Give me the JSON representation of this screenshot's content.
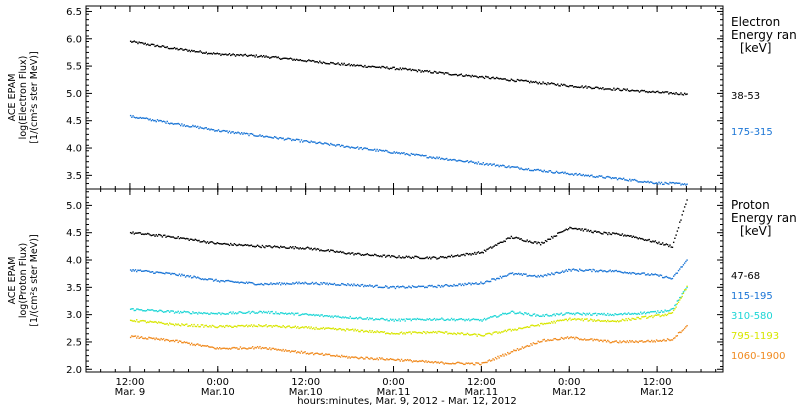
{
  "figure": {
    "xlabel": "hours:minutes, Mar.  9, 2012 - Mar. 12, 2012",
    "x_ticks": [
      {
        "time": "12:00",
        "date": "Mar. 9"
      },
      {
        "time": "0:00",
        "date": "Mar.10"
      },
      {
        "time": "12:00",
        "date": "Mar.10"
      },
      {
        "time": "0:00",
        "date": "Mar.11"
      },
      {
        "time": "12:00",
        "date": "Mar.11"
      },
      {
        "time": "0:00",
        "date": "Mar.12"
      },
      {
        "time": "12:00",
        "date": "Mar.12"
      }
    ]
  },
  "chart_data": [
    {
      "type": "scatter",
      "panel": "electron",
      "ylabel": [
        "ACE EPAM",
        "log(Electron Flux)",
        "[1/(cm²s ster MeV)]"
      ],
      "ylim": [
        3.25,
        6.6
      ],
      "yticks": [
        3.5,
        4.0,
        4.5,
        5.0,
        5.5,
        6.0,
        6.5
      ],
      "xlim_hours": [
        -6,
        81
      ],
      "legend": {
        "title1": "Electron",
        "title2": "Energy ran",
        "unit": "[keV]"
      },
      "series": [
        {
          "name": "38-53",
          "color": "#000000",
          "points": [
            [
              0,
              5.95
            ],
            [
              6,
              5.82
            ],
            [
              12,
              5.72
            ],
            [
              18,
              5.68
            ],
            [
              24,
              5.6
            ],
            [
              30,
              5.52
            ],
            [
              36,
              5.46
            ],
            [
              42,
              5.38
            ],
            [
              48,
              5.3
            ],
            [
              54,
              5.22
            ],
            [
              60,
              5.14
            ],
            [
              66,
              5.08
            ],
            [
              72,
              5.02
            ],
            [
              76,
              4.99
            ]
          ]
        },
        {
          "name": "175-315",
          "color": "#1a75d6",
          "points": [
            [
              0,
              4.58
            ],
            [
              6,
              4.45
            ],
            [
              12,
              4.32
            ],
            [
              18,
              4.22
            ],
            [
              24,
              4.12
            ],
            [
              30,
              4.02
            ],
            [
              36,
              3.92
            ],
            [
              42,
              3.82
            ],
            [
              48,
              3.72
            ],
            [
              54,
              3.62
            ],
            [
              60,
              3.53
            ],
            [
              66,
              3.45
            ],
            [
              72,
              3.36
            ],
            [
              76,
              3.34
            ]
          ]
        }
      ]
    },
    {
      "type": "scatter",
      "panel": "proton",
      "ylabel": [
        "ACE EPAM",
        "log(Proton Flux)",
        "[1/(cm²s ster MeV)]"
      ],
      "ylim": [
        1.95,
        5.3
      ],
      "yticks": [
        2.0,
        2.5,
        3.0,
        3.5,
        4.0,
        4.5,
        5.0
      ],
      "xlim_hours": [
        -6,
        81
      ],
      "legend": {
        "title1": "Proton",
        "title2": "Energy ran",
        "unit": "[keV]"
      },
      "series": [
        {
          "name": "47-68",
          "color": "#000000",
          "points": [
            [
              0,
              4.5
            ],
            [
              6,
              4.42
            ],
            [
              12,
              4.3
            ],
            [
              18,
              4.25
            ],
            [
              24,
              4.22
            ],
            [
              30,
              4.12
            ],
            [
              36,
              4.06
            ],
            [
              42,
              4.04
            ],
            [
              48,
              4.14
            ],
            [
              52,
              4.42
            ],
            [
              56,
              4.3
            ],
            [
              60,
              4.6
            ],
            [
              64,
              4.5
            ],
            [
              68,
              4.45
            ],
            [
              72,
              4.32
            ],
            [
              74,
              4.25
            ],
            [
              76,
              5.1
            ]
          ]
        },
        {
          "name": "115-195",
          "color": "#1a75d6",
          "points": [
            [
              0,
              3.82
            ],
            [
              6,
              3.74
            ],
            [
              12,
              3.62
            ],
            [
              18,
              3.56
            ],
            [
              24,
              3.58
            ],
            [
              30,
              3.55
            ],
            [
              36,
              3.5
            ],
            [
              42,
              3.52
            ],
            [
              48,
              3.58
            ],
            [
              52,
              3.75
            ],
            [
              56,
              3.7
            ],
            [
              60,
              3.82
            ],
            [
              66,
              3.8
            ],
            [
              72,
              3.72
            ],
            [
              74,
              3.66
            ],
            [
              76,
              4.0
            ]
          ]
        },
        {
          "name": "310-580",
          "color": "#1ed6d6",
          "points": [
            [
              0,
              3.1
            ],
            [
              6,
              3.05
            ],
            [
              12,
              3.02
            ],
            [
              18,
              3.05
            ],
            [
              24,
              3.0
            ],
            [
              30,
              2.95
            ],
            [
              36,
              2.9
            ],
            [
              42,
              2.92
            ],
            [
              48,
              2.9
            ],
            [
              52,
              3.05
            ],
            [
              56,
              2.98
            ],
            [
              60,
              3.02
            ],
            [
              66,
              3.0
            ],
            [
              72,
              3.05
            ],
            [
              74,
              3.1
            ],
            [
              76,
              3.5
            ]
          ]
        },
        {
          "name": "795-1193",
          "color": "#d8e600",
          "points": [
            [
              0,
              2.9
            ],
            [
              6,
              2.82
            ],
            [
              12,
              2.78
            ],
            [
              18,
              2.8
            ],
            [
              24,
              2.76
            ],
            [
              30,
              2.72
            ],
            [
              36,
              2.66
            ],
            [
              42,
              2.68
            ],
            [
              48,
              2.62
            ],
            [
              52,
              2.72
            ],
            [
              56,
              2.82
            ],
            [
              60,
              2.92
            ],
            [
              66,
              2.88
            ],
            [
              72,
              2.98
            ],
            [
              74,
              3.02
            ],
            [
              76,
              3.52
            ]
          ]
        },
        {
          "name": "1060-1900",
          "color": "#f08a1e",
          "points": [
            [
              0,
              2.6
            ],
            [
              6,
              2.52
            ],
            [
              12,
              2.38
            ],
            [
              18,
              2.4
            ],
            [
              24,
              2.3
            ],
            [
              30,
              2.22
            ],
            [
              36,
              2.18
            ],
            [
              42,
              2.12
            ],
            [
              48,
              2.1
            ],
            [
              52,
              2.32
            ],
            [
              56,
              2.52
            ],
            [
              60,
              2.58
            ],
            [
              66,
              2.5
            ],
            [
              72,
              2.52
            ],
            [
              74,
              2.55
            ],
            [
              76,
              2.8
            ]
          ]
        }
      ]
    }
  ]
}
